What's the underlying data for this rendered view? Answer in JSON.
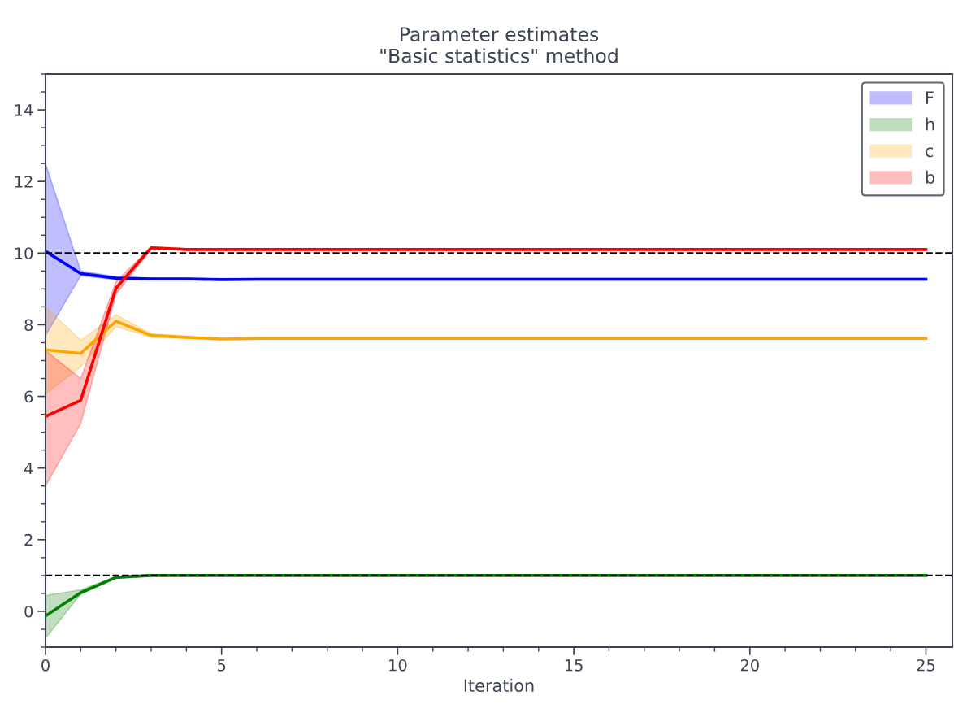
{
  "chart_data": {
    "type": "line",
    "title": "Parameter estimates\n\"Basic statistics\" method",
    "xlabel": "Iteration",
    "x": [
      0,
      1,
      2,
      3,
      4,
      5,
      6,
      7,
      8,
      9,
      10,
      11,
      12,
      13,
      14,
      15,
      16,
      17,
      18,
      19,
      20,
      21,
      22,
      23,
      24,
      25
    ],
    "xlim": [
      0,
      25.75
    ],
    "xticks": [
      0,
      5,
      10,
      15,
      20,
      25
    ],
    "ylim": [
      -1,
      15
    ],
    "yticks": [
      0,
      2,
      4,
      6,
      8,
      10,
      12,
      14
    ],
    "grid": false,
    "legend": "top right",
    "line_style": "solid",
    "marker": "none",
    "ref_lines": [
      {
        "axis": "y",
        "value": 10,
        "color": "#000000",
        "line_style": "dashed"
      },
      {
        "axis": "y",
        "value": 1,
        "color": "#000000",
        "line_style": "dashed"
      }
    ],
    "series": [
      {
        "name": "F",
        "color": "#0000ff",
        "values": [
          10.05,
          9.43,
          9.3,
          9.28,
          9.28,
          9.26,
          9.27,
          9.27,
          9.27,
          9.27,
          9.27,
          9.27,
          9.27,
          9.27,
          9.27,
          9.27,
          9.27,
          9.27,
          9.27,
          9.27,
          9.27,
          9.27,
          9.27,
          9.27,
          9.27,
          9.27
        ],
        "lower": [
          7.7,
          9.37,
          9.26,
          9.26,
          9.26,
          9.24,
          9.25,
          9.25,
          9.25,
          9.25,
          9.25,
          9.25,
          9.25,
          9.25,
          9.25,
          9.25,
          9.25,
          9.25,
          9.25,
          9.25,
          9.25,
          9.25,
          9.25,
          9.25,
          9.25,
          9.25
        ],
        "upper": [
          12.5,
          9.5,
          9.34,
          9.3,
          9.3,
          9.28,
          9.29,
          9.29,
          9.29,
          9.29,
          9.29,
          9.29,
          9.29,
          9.29,
          9.29,
          9.29,
          9.29,
          9.29,
          9.29,
          9.29,
          9.29,
          9.29,
          9.29,
          9.29,
          9.29,
          9.29
        ]
      },
      {
        "name": "h",
        "color": "#008000",
        "values": [
          -0.13,
          0.52,
          0.95,
          1.0,
          1.0,
          1.0,
          1.0,
          1.0,
          1.0,
          1.0,
          1.0,
          1.0,
          1.0,
          1.0,
          1.0,
          1.0,
          1.0,
          1.0,
          1.0,
          1.0,
          1.0,
          1.0,
          1.0,
          1.0,
          1.0,
          1.0
        ],
        "lower": [
          -0.75,
          0.48,
          0.92,
          0.99,
          0.99,
          0.99,
          0.99,
          0.99,
          0.99,
          0.99,
          0.99,
          0.99,
          0.99,
          0.99,
          0.99,
          0.99,
          0.99,
          0.99,
          0.99,
          0.99,
          0.99,
          0.99,
          0.99,
          0.99,
          0.99,
          0.99
        ],
        "upper": [
          0.44,
          0.6,
          0.97,
          1.01,
          1.01,
          1.01,
          1.01,
          1.01,
          1.01,
          1.01,
          1.01,
          1.01,
          1.01,
          1.01,
          1.01,
          1.01,
          1.01,
          1.01,
          1.01,
          1.01,
          1.01,
          1.01,
          1.01,
          1.01,
          1.01,
          1.01
        ]
      },
      {
        "name": "c",
        "color": "#ffa500",
        "values": [
          7.3,
          7.2,
          8.1,
          7.7,
          7.65,
          7.6,
          7.62,
          7.62,
          7.62,
          7.62,
          7.62,
          7.62,
          7.62,
          7.62,
          7.62,
          7.62,
          7.62,
          7.62,
          7.62,
          7.62,
          7.62,
          7.62,
          7.62,
          7.62,
          7.62,
          7.62
        ],
        "lower": [
          6.07,
          6.83,
          7.95,
          7.65,
          7.62,
          7.58,
          7.6,
          7.6,
          7.6,
          7.6,
          7.6,
          7.6,
          7.6,
          7.6,
          7.6,
          7.6,
          7.6,
          7.6,
          7.6,
          7.6,
          7.6,
          7.6,
          7.6,
          7.6,
          7.6,
          7.6
        ],
        "upper": [
          8.5,
          7.57,
          8.28,
          7.75,
          7.68,
          7.62,
          7.64,
          7.64,
          7.64,
          7.64,
          7.64,
          7.64,
          7.64,
          7.64,
          7.64,
          7.64,
          7.64,
          7.64,
          7.64,
          7.64,
          7.64,
          7.64,
          7.64,
          7.64,
          7.64,
          7.64
        ]
      },
      {
        "name": "b",
        "color": "#ff0000",
        "values": [
          5.44,
          5.89,
          9.02,
          10.15,
          10.1,
          10.1,
          10.1,
          10.1,
          10.1,
          10.1,
          10.1,
          10.1,
          10.1,
          10.1,
          10.1,
          10.1,
          10.1,
          10.1,
          10.1,
          10.1,
          10.1,
          10.1,
          10.1,
          10.1,
          10.1,
          10.1
        ],
        "lower": [
          3.5,
          5.24,
          8.85,
          10.12,
          10.08,
          10.08,
          10.08,
          10.08,
          10.08,
          10.08,
          10.08,
          10.08,
          10.08,
          10.08,
          10.08,
          10.08,
          10.08,
          10.08,
          10.08,
          10.08,
          10.08,
          10.08,
          10.08,
          10.08,
          10.08,
          10.08
        ],
        "upper": [
          7.28,
          6.5,
          9.2,
          10.18,
          10.12,
          10.12,
          10.12,
          10.12,
          10.12,
          10.12,
          10.12,
          10.12,
          10.12,
          10.12,
          10.12,
          10.12,
          10.12,
          10.12,
          10.12,
          10.12,
          10.12,
          10.12,
          10.12,
          10.12,
          10.12,
          10.12
        ]
      }
    ]
  }
}
